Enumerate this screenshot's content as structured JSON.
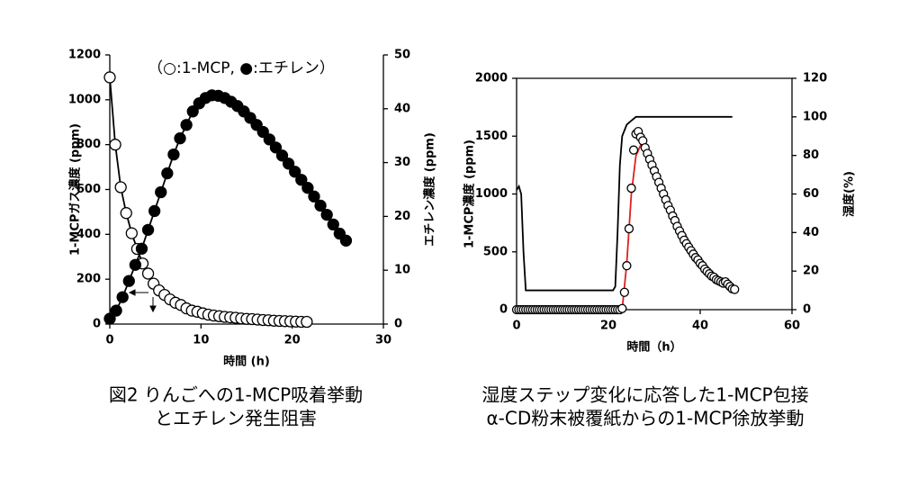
{
  "chart_data": [
    {
      "type": "line",
      "xlabel": "時間 (h)",
      "ylabel": "1-MCPガス濃度 (ppm)",
      "y2label": "エチレン濃度 (ppm)",
      "annotation": "（○:1-MCP, ●:エチレン）",
      "caption": [
        "図2 りんごへの1-MCP吸着挙動",
        "とエチレン発生阻害"
      ],
      "xlim": [
        0,
        30
      ],
      "xticks": [
        0,
        10,
        20,
        30
      ],
      "ylim": [
        0,
        1200
      ],
      "yticks": [
        0,
        200,
        400,
        600,
        800,
        1000,
        1200
      ],
      "y2lim": [
        0,
        50
      ],
      "y2ticks": [
        0,
        10,
        20,
        30,
        40,
        50
      ],
      "box": false,
      "series": [
        {
          "name": "1-MCP",
          "color": "#000000",
          "marker": "open",
          "line": true,
          "x": [
            0,
            0.6,
            1.2,
            1.8,
            2.4,
            3.0,
            3.6,
            4.2,
            4.8,
            5.4,
            6.0,
            6.6,
            7.2,
            7.8,
            8.4,
            9.0,
            9.6,
            10.2,
            10.8,
            11.4,
            12.0,
            12.6,
            13.2,
            13.8,
            14.4,
            15.0,
            15.6,
            16.2,
            16.8,
            17.4,
            18.0,
            18.6,
            19.2,
            19.8,
            20.4,
            21.0,
            21.6
          ],
          "values": [
            1100,
            800,
            610,
            495,
            405,
            335,
            270,
            225,
            180,
            150,
            130,
            110,
            95,
            85,
            70,
            60,
            55,
            48,
            42,
            38,
            35,
            32,
            30,
            28,
            25,
            23,
            22,
            20,
            18,
            17,
            15,
            14,
            13,
            12,
            11,
            10,
            10
          ]
        },
        {
          "name": "エチレン",
          "color": "#000000",
          "marker": "filled",
          "line": true,
          "axis": "y2",
          "x": [
            0,
            0.7,
            1.4,
            2.1,
            2.8,
            3.5,
            4.2,
            4.9,
            5.6,
            6.3,
            7.0,
            7.7,
            8.4,
            9.1,
            9.8,
            10.5,
            11.2,
            11.9,
            12.6,
            13.3,
            14.0,
            14.7,
            15.4,
            16.1,
            16.8,
            17.5,
            18.2,
            18.9,
            19.6,
            20.3,
            21.0,
            21.7,
            22.4,
            23.1,
            23.8,
            24.5,
            25.2,
            25.9
          ],
          "values": [
            1,
            2.5,
            5,
            8,
            11,
            14,
            17.5,
            21,
            24.5,
            28,
            31.5,
            34.5,
            37,
            39.5,
            41,
            42,
            42.5,
            42.4,
            42,
            41.3,
            40.5,
            39.5,
            38.3,
            37,
            35.7,
            34.3,
            32.8,
            31.3,
            29.8,
            28.3,
            26.8,
            25.3,
            23.7,
            22,
            20.3,
            18.5,
            16.8,
            15.5
          ]
        }
      ]
    },
    {
      "type": "line",
      "xlabel": "時間（h）",
      "ylabel": "1-MCP濃度 (ppm)",
      "y2label": "湿度(%)",
      "caption": [
        "湿度ステップ変化に応答した1-MCP包接",
        "α-CD粉末被覆紙からの1-MCP徐放挙動"
      ],
      "xlim": [
        0,
        60
      ],
      "xticks": [
        0,
        20,
        40,
        60
      ],
      "ylim": [
        0,
        2000
      ],
      "yticks": [
        0,
        500,
        1000,
        1500,
        2000
      ],
      "y2lim": [
        0,
        120
      ],
      "y2ticks": [
        0,
        20,
        40,
        60,
        80,
        100,
        120
      ],
      "box": true,
      "series": [
        {
          "color": "#000000",
          "marker": "none",
          "line": true,
          "axis": "y2",
          "x": [
            0,
            0.5,
            1,
            1.5,
            2,
            21,
            21.5,
            22,
            22.5,
            23,
            24,
            25,
            26,
            47
          ],
          "values": [
            62,
            64,
            60,
            30,
            10,
            10,
            12,
            40,
            75,
            90,
            96,
            98,
            100,
            100
          ]
        },
        {
          "color": "#e02020",
          "marker": "none",
          "line": true,
          "x": [
            23,
            24,
            25,
            26,
            27,
            28,
            30,
            32,
            34,
            36,
            38,
            40,
            42,
            44,
            46,
            47.5
          ],
          "values": [
            0,
            400,
            1000,
            1330,
            1420,
            1400,
            1250,
            1060,
            870,
            700,
            560,
            440,
            350,
            280,
            230,
            200
          ]
        },
        {
          "color": "#000000",
          "marker": "open",
          "line": false,
          "x": [
            0,
            0.5,
            1,
            1.5,
            2,
            2.5,
            3,
            3.5,
            4,
            4.5,
            5,
            5.5,
            6,
            6.5,
            7,
            7.5,
            8,
            8.5,
            9,
            9.5,
            10,
            10.5,
            11,
            11.5,
            12,
            12.5,
            13,
            13.5,
            14,
            14.5,
            15,
            15.5,
            16,
            16.5,
            17,
            17.5,
            18,
            18.5,
            19,
            19.5,
            20,
            20.5,
            21,
            21.5,
            22,
            22.5,
            23,
            23.5,
            24,
            24.5,
            25,
            25.5,
            26,
            26.5,
            27,
            27.5,
            28,
            28.5,
            29,
            29.5,
            30,
            30.5,
            31,
            31.5,
            32,
            32.5,
            33,
            33.5,
            34,
            34.5,
            35,
            35.5,
            36,
            36.5,
            37,
            37.5,
            38,
            38.5,
            39,
            39.5,
            40,
            40.5,
            41,
            41.5,
            42,
            42.5,
            43,
            43.5,
            44,
            44.5,
            45,
            45.5,
            46,
            46.5,
            47,
            47.5
          ],
          "values": [
            0,
            0,
            0,
            0,
            0,
            0,
            0,
            0,
            0,
            0,
            0,
            0,
            0,
            0,
            0,
            0,
            0,
            0,
            0,
            0,
            0,
            0,
            0,
            0,
            0,
            0,
            0,
            0,
            0,
            0,
            0,
            0,
            0,
            0,
            0,
            0,
            0,
            0,
            0,
            0,
            0,
            0,
            0,
            0,
            0,
            0,
            10,
            150,
            380,
            700,
            1050,
            1380,
            1520,
            1540,
            1490,
            1460,
            1400,
            1350,
            1300,
            1250,
            1200,
            1150,
            1100,
            1050,
            1000,
            950,
            900,
            860,
            810,
            770,
            720,
            680,
            640,
            600,
            570,
            540,
            510,
            480,
            450,
            430,
            400,
            380,
            350,
            330,
            310,
            290,
            280,
            260,
            250,
            240,
            230,
            240,
            220,
            200,
            180,
            175
          ]
        }
      ]
    }
  ]
}
